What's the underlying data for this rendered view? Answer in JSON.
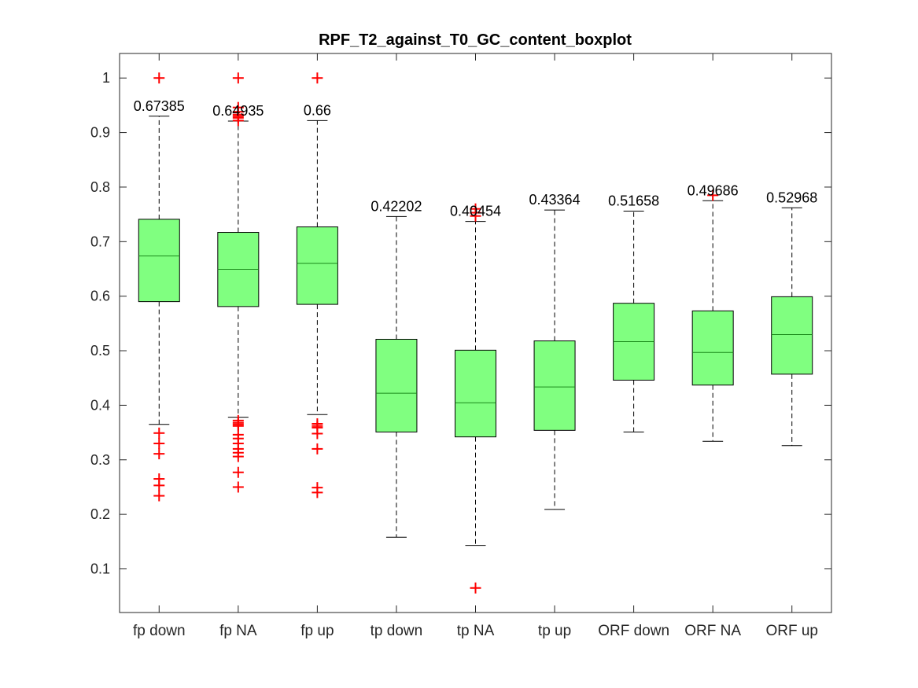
{
  "chart_data": {
    "type": "boxplot",
    "title": "RPF_T2_against_T0_GC_content_boxplot",
    "xlabel": "",
    "ylabel": "",
    "ylim": [
      0.02,
      1.045
    ],
    "yticks": [
      0.1,
      0.2,
      0.3,
      0.4,
      0.5,
      0.6,
      0.7,
      0.8,
      0.9,
      1
    ],
    "ytick_labels": [
      "0.1",
      "0.2",
      "0.3",
      "0.4",
      "0.5",
      "0.6",
      "0.7",
      "0.8",
      "0.9",
      "1"
    ],
    "grid": false,
    "box_color": "#80ff80",
    "outlier_color": "#ff0000",
    "categories": [
      "fp down",
      "fp NA",
      "fp up",
      "tp down",
      "tp NA",
      "tp up",
      "ORF down",
      "ORF NA",
      "ORF up"
    ],
    "boxes": [
      {
        "label": "fp down",
        "median": 0.67385,
        "median_label": "0.67385",
        "q1": 0.59,
        "q3": 0.741,
        "whisker_low": 0.365,
        "whisker_high": 0.93,
        "outliers": [
          1.0,
          0.349,
          0.33,
          0.311,
          0.265,
          0.253,
          0.234
        ]
      },
      {
        "label": "fp NA",
        "median": 0.64935,
        "median_label": "0.64935",
        "q1": 0.581,
        "q3": 0.717,
        "whisker_low": 0.378,
        "whisker_high": 0.921,
        "outliers": [
          1.0,
          0.946,
          0.938,
          0.933,
          0.93,
          0.927,
          0.922,
          0.372,
          0.368,
          0.365,
          0.362,
          0.346,
          0.339,
          0.33,
          0.32,
          0.313,
          0.306,
          0.277,
          0.25
        ]
      },
      {
        "label": "fp up",
        "median": 0.66,
        "median_label": "0.66",
        "q1": 0.585,
        "q3": 0.727,
        "whisker_low": 0.383,
        "whisker_high": 0.922,
        "outliers": [
          1.0,
          0.366,
          0.362,
          0.359,
          0.348,
          0.32,
          0.249,
          0.24
        ]
      },
      {
        "label": "tp down",
        "median": 0.42202,
        "median_label": "0.42202",
        "q1": 0.351,
        "q3": 0.521,
        "whisker_low": 0.158,
        "whisker_high": 0.746,
        "outliers": []
      },
      {
        "label": "tp NA",
        "median": 0.40454,
        "median_label": "0.40454",
        "q1": 0.342,
        "q3": 0.501,
        "whisker_low": 0.143,
        "whisker_high": 0.737,
        "outliers": [
          0.76,
          0.753,
          0.747,
          0.065
        ]
      },
      {
        "label": "tp up",
        "median": 0.43364,
        "median_label": "0.43364",
        "q1": 0.354,
        "q3": 0.518,
        "whisker_low": 0.209,
        "whisker_high": 0.758,
        "outliers": []
      },
      {
        "label": "ORF down",
        "median": 0.51658,
        "median_label": "0.51658",
        "q1": 0.446,
        "q3": 0.587,
        "whisker_low": 0.351,
        "whisker_high": 0.756,
        "outliers": []
      },
      {
        "label": "ORF NA",
        "median": 0.49686,
        "median_label": "0.49686",
        "q1": 0.437,
        "q3": 0.573,
        "whisker_low": 0.334,
        "whisker_high": 0.775,
        "outliers": [
          0.785
        ]
      },
      {
        "label": "ORF up",
        "median": 0.52968,
        "median_label": "0.52968",
        "q1": 0.457,
        "q3": 0.599,
        "whisker_low": 0.326,
        "whisker_high": 0.762,
        "outliers": []
      }
    ]
  }
}
